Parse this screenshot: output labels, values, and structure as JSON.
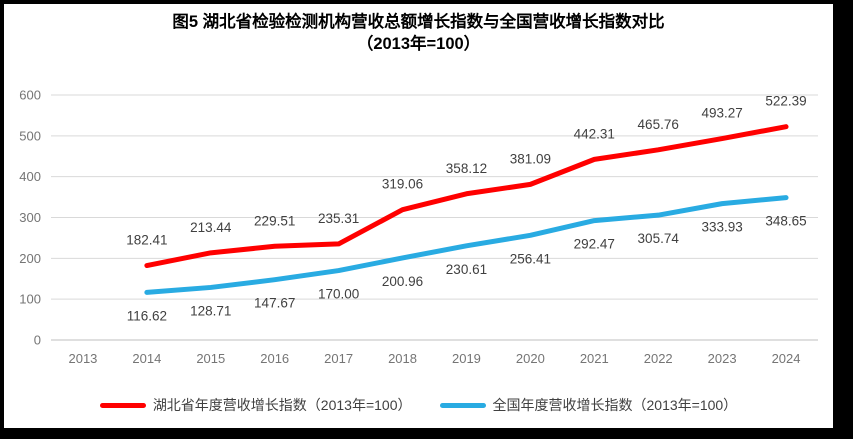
{
  "title": {
    "line1": "图5 湖北省检验检测机构营收总额增长指数与全国营收增长指数对比",
    "line2": "（2013年=100）"
  },
  "chart_data": {
    "type": "line",
    "categories": [
      "2013",
      "2014",
      "2015",
      "2016",
      "2017",
      "2018",
      "2019",
      "2020",
      "2021",
      "2022",
      "2023",
      "2024"
    ],
    "series": [
      {
        "name": "湖北省年度营收增长指数（2013年=100）",
        "color": "#FF0000",
        "label_position": "above",
        "values": [
          null,
          182.41,
          213.44,
          229.51,
          235.31,
          319.06,
          358.12,
          381.09,
          442.31,
          465.76,
          493.27,
          522.39
        ]
      },
      {
        "name": "全国年度营收增长指数（2013年=100）",
        "color": "#29ABE2",
        "label_position": "below",
        "values": [
          null,
          116.62,
          128.71,
          147.67,
          170.0,
          200.96,
          230.61,
          256.41,
          292.47,
          305.74,
          333.93,
          348.65
        ]
      }
    ],
    "xlabel": "",
    "ylabel": "",
    "ylim": [
      0,
      600
    ],
    "yticks": [
      0,
      100,
      200,
      300,
      400,
      500,
      600
    ],
    "grid": true,
    "legend_position": "bottom",
    "value_decimals": 2
  },
  "colors": {
    "background": "#FFFFFF",
    "frame_border": "#000000",
    "gridline": "#D9D9D9",
    "axis_line": "#BFBFBF",
    "tick_label": "#757575",
    "data_label": "#404040",
    "legend_text": "#404040"
  }
}
